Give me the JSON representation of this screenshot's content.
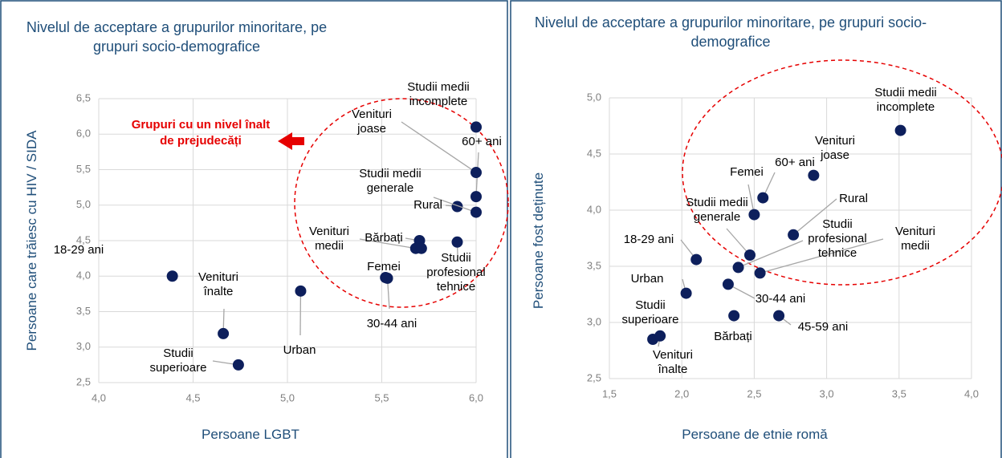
{
  "chart_data": [
    {
      "type": "scatter",
      "title": "Nivelul de acceptare a grupurilor minoritare, pe grupuri socio-demografice",
      "x_label": "Persoane LGBT",
      "y_label": "Persoane care trăiesc cu HIV / SIDA",
      "annotation": "Grupuri cu un nivel înalt de prejudecăți",
      "color": "#0d1f5c",
      "labels": [
        "18-29 ani",
        "Venituri înalte",
        "Studii superioare",
        "Urban",
        "Femei",
        "30-44 ani",
        "Bărbați",
        "Venituri medii",
        null,
        "Studii profesional tehnice",
        "Rural",
        "Studii medii generale",
        "60+ ani",
        "Venituri joase",
        "Studii medii incomplete"
      ],
      "x": [
        4.39,
        4.66,
        4.74,
        5.07,
        5.52,
        5.53,
        5.7,
        5.68,
        5.71,
        5.9,
        5.9,
        6.0,
        6.0,
        6.0,
        6.0
      ],
      "y": [
        4.0,
        3.19,
        2.75,
        3.79,
        3.98,
        3.97,
        4.5,
        4.39,
        4.39,
        4.48,
        4.98,
        4.9,
        5.12,
        5.46,
        6.1
      ],
      "xlim": [
        4.0,
        6.0
      ],
      "ylim": [
        2.5,
        6.5
      ],
      "xticks": [
        {
          "value": 4.0,
          "label": "4,0"
        },
        {
          "value": 4.5,
          "label": "4,5"
        },
        {
          "value": 5.0,
          "label": "5,0"
        },
        {
          "value": 5.5,
          "label": "5,5"
        },
        {
          "value": 6.0,
          "label": "6,0"
        }
      ],
      "yticks": [
        {
          "value": 2.5,
          "label": "2,5"
        },
        {
          "value": 3.0,
          "label": "3,0"
        },
        {
          "value": 3.5,
          "label": "3,5"
        },
        {
          "value": 4.0,
          "label": "4,0"
        },
        {
          "value": 4.5,
          "label": "4,5"
        },
        {
          "value": 5.0,
          "label": "5,0"
        },
        {
          "value": 5.5,
          "label": "5,5"
        },
        {
          "value": 6.0,
          "label": "6,0"
        },
        {
          "value": 6.5,
          "label": "6,5"
        }
      ],
      "grid": true
    },
    {
      "type": "scatter",
      "title": "Nivelul de acceptare a grupurilor minoritare, pe grupuri socio-demografice",
      "x_label": "Persoane de etnie romă",
      "y_label": "Persoane fost deținute",
      "color": "#0d1f5c",
      "labels": [
        "Studii medii incomplete",
        "Venituri joase",
        "60+ ani",
        "Femei",
        "Rural",
        "Studii medii generale",
        "Studii profesional tehnice",
        "Venituri medii",
        "18-29 ani",
        "Urban",
        "30-44 ani",
        "Bărbați",
        "45-59 ani",
        "Studii superioare",
        "Venituri înalte"
      ],
      "x": [
        3.51,
        2.91,
        2.56,
        2.5,
        2.77,
        2.47,
        2.39,
        2.54,
        2.1,
        2.03,
        2.32,
        2.36,
        2.67,
        1.8,
        1.85
      ],
      "y": [
        4.71,
        4.31,
        4.11,
        3.96,
        3.78,
        3.6,
        3.49,
        3.44,
        3.56,
        3.26,
        3.34,
        3.06,
        3.06,
        2.85,
        2.88
      ],
      "xlim": [
        1.5,
        4.0
      ],
      "ylim": [
        2.5,
        5.0
      ],
      "xticks": [
        {
          "value": 1.5,
          "label": "1,5"
        },
        {
          "value": 2.0,
          "label": "2,0"
        },
        {
          "value": 2.5,
          "label": "2,5"
        },
        {
          "value": 3.0,
          "label": "3,0"
        },
        {
          "value": 3.5,
          "label": "3,5"
        },
        {
          "value": 4.0,
          "label": "4,0"
        }
      ],
      "yticks": [
        {
          "value": 2.5,
          "label": "2,5"
        },
        {
          "value": 3.0,
          "label": "3,0"
        },
        {
          "value": 3.5,
          "label": "3,5"
        },
        {
          "value": 4.0,
          "label": "4,0"
        },
        {
          "value": 4.5,
          "label": "4,5"
        },
        {
          "value": 5.0,
          "label": "5,0"
        }
      ],
      "grid": true
    }
  ]
}
